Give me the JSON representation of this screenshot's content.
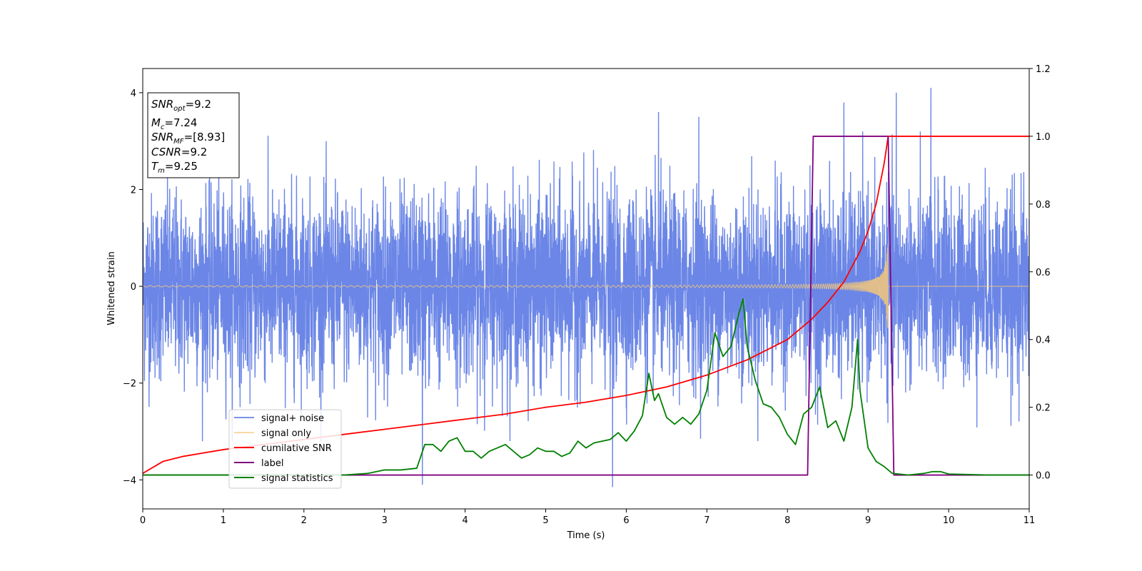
{
  "chart_data": {
    "type": "line",
    "xlabel": "Time (s)",
    "ylabel": "Whitened strain",
    "xlim": [
      0,
      11
    ],
    "ylim_left": [
      -4.6,
      4.5
    ],
    "ylim_right": [
      -0.1,
      1.2
    ],
    "x_ticks": [
      0,
      1,
      2,
      3,
      4,
      5,
      6,
      7,
      8,
      9,
      10,
      11
    ],
    "y_ticks_left": [
      -4,
      -2,
      0,
      2,
      4
    ],
    "y_tick_labels_left": [
      "−4",
      "−2",
      "0",
      "2",
      "4"
    ],
    "y_ticks_right": [
      0.0,
      0.2,
      0.4,
      0.6,
      0.8,
      1.0,
      1.2
    ],
    "y_tick_labels_right": [
      "0.0",
      "0.2",
      "0.4",
      "0.6",
      "0.8",
      "1.0",
      "1.2"
    ],
    "grid": false,
    "legend_position": "lower-left",
    "series": [
      {
        "name": "signal+ noise",
        "color": "#6b86e6",
        "axis": "left",
        "description_values": {
          "noise_amplitude": 1.7,
          "peak_spikes": [
            [
              6.4,
              3.6
            ],
            [
              6.9,
              3.5
            ],
            [
              8.7,
              3.8
            ],
            [
              9.35,
              4.0
            ],
            [
              9.78,
              4.1
            ],
            [
              5.83,
              -4.15
            ],
            [
              3.47,
              -4.1
            ]
          ]
        }
      },
      {
        "name": "signal only",
        "color": "#f5c87a",
        "axis": "left",
        "chirp": {
          "t_merge": 9.25,
          "amp_start": 0.02,
          "amp_end": 1.0
        }
      },
      {
        "name": "cumilative SNR",
        "color": "#ff0000",
        "axis": "right",
        "points": [
          [
            0.0,
            0.005
          ],
          [
            0.25,
            0.04
          ],
          [
            0.5,
            0.055
          ],
          [
            1.0,
            0.075
          ],
          [
            1.5,
            0.09
          ],
          [
            2.0,
            0.105
          ],
          [
            2.5,
            0.12
          ],
          [
            3.0,
            0.135
          ],
          [
            3.5,
            0.15
          ],
          [
            4.0,
            0.165
          ],
          [
            4.5,
            0.18
          ],
          [
            5.0,
            0.2
          ],
          [
            5.5,
            0.215
          ],
          [
            6.0,
            0.235
          ],
          [
            6.5,
            0.26
          ],
          [
            7.0,
            0.295
          ],
          [
            7.5,
            0.34
          ],
          [
            8.0,
            0.4
          ],
          [
            8.3,
            0.46
          ],
          [
            8.5,
            0.51
          ],
          [
            8.7,
            0.57
          ],
          [
            8.9,
            0.66
          ],
          [
            9.0,
            0.72
          ],
          [
            9.1,
            0.8
          ],
          [
            9.2,
            0.92
          ],
          [
            9.25,
            1.0
          ],
          [
            11.0,
            1.0
          ]
        ]
      },
      {
        "name": "label",
        "color": "#800080",
        "axis": "right",
        "points": [
          [
            0.0,
            0.0
          ],
          [
            8.25,
            0.0
          ],
          [
            8.32,
            1.0
          ],
          [
            9.25,
            1.0
          ],
          [
            9.32,
            0.0
          ],
          [
            11.0,
            0.0
          ]
        ]
      },
      {
        "name": "signal statistics",
        "color": "#008000",
        "axis": "right",
        "points": [
          [
            0.0,
            0.0
          ],
          [
            1.0,
            0.0
          ],
          [
            2.0,
            0.0
          ],
          [
            2.5,
            0.0
          ],
          [
            2.8,
            0.005
          ],
          [
            3.0,
            0.015
          ],
          [
            3.2,
            0.015
          ],
          [
            3.4,
            0.02
          ],
          [
            3.5,
            0.09
          ],
          [
            3.6,
            0.09
          ],
          [
            3.7,
            0.07
          ],
          [
            3.8,
            0.1
          ],
          [
            3.9,
            0.11
          ],
          [
            4.0,
            0.07
          ],
          [
            4.1,
            0.07
          ],
          [
            4.2,
            0.05
          ],
          [
            4.3,
            0.07
          ],
          [
            4.4,
            0.08
          ],
          [
            4.5,
            0.09
          ],
          [
            4.6,
            0.07
          ],
          [
            4.7,
            0.05
          ],
          [
            4.8,
            0.06
          ],
          [
            4.9,
            0.08
          ],
          [
            5.0,
            0.07
          ],
          [
            5.1,
            0.07
          ],
          [
            5.2,
            0.055
          ],
          [
            5.3,
            0.065
          ],
          [
            5.4,
            0.1
          ],
          [
            5.5,
            0.08
          ],
          [
            5.6,
            0.095
          ],
          [
            5.7,
            0.1
          ],
          [
            5.8,
            0.105
          ],
          [
            5.9,
            0.125
          ],
          [
            6.0,
            0.1
          ],
          [
            6.1,
            0.13
          ],
          [
            6.2,
            0.175
          ],
          [
            6.28,
            0.3
          ],
          [
            6.35,
            0.22
          ],
          [
            6.4,
            0.24
          ],
          [
            6.5,
            0.17
          ],
          [
            6.6,
            0.15
          ],
          [
            6.7,
            0.17
          ],
          [
            6.8,
            0.15
          ],
          [
            6.9,
            0.18
          ],
          [
            7.0,
            0.25
          ],
          [
            7.1,
            0.42
          ],
          [
            7.2,
            0.35
          ],
          [
            7.3,
            0.38
          ],
          [
            7.4,
            0.48
          ],
          [
            7.45,
            0.52
          ],
          [
            7.5,
            0.38
          ],
          [
            7.6,
            0.28
          ],
          [
            7.7,
            0.21
          ],
          [
            7.8,
            0.2
          ],
          [
            7.9,
            0.17
          ],
          [
            8.0,
            0.12
          ],
          [
            8.1,
            0.09
          ],
          [
            8.2,
            0.18
          ],
          [
            8.3,
            0.2
          ],
          [
            8.4,
            0.26
          ],
          [
            8.5,
            0.14
          ],
          [
            8.6,
            0.16
          ],
          [
            8.7,
            0.1
          ],
          [
            8.8,
            0.2
          ],
          [
            8.87,
            0.4
          ],
          [
            8.9,
            0.25
          ],
          [
            9.0,
            0.08
          ],
          [
            9.1,
            0.04
          ],
          [
            9.2,
            0.025
          ],
          [
            9.3,
            0.005
          ],
          [
            9.5,
            0.0
          ],
          [
            9.7,
            0.005
          ],
          [
            9.8,
            0.01
          ],
          [
            9.9,
            0.01
          ],
          [
            10.0,
            0.003
          ],
          [
            10.5,
            0.0
          ],
          [
            11.0,
            0.0
          ]
        ]
      }
    ],
    "annotations": {
      "info_box": [
        {
          "main": "SNR",
          "sub": "opt",
          "rest": "=9.2"
        },
        {
          "main": "M",
          "sub": "c",
          "rest": "=7.24"
        },
        {
          "main": "SNR",
          "sub": "MF",
          "rest": "=[8.93]"
        },
        {
          "main": "CSNR",
          "sub": "",
          "rest": "=9.2"
        },
        {
          "main": "T",
          "sub": "m",
          "rest": "=9.25"
        }
      ]
    }
  }
}
